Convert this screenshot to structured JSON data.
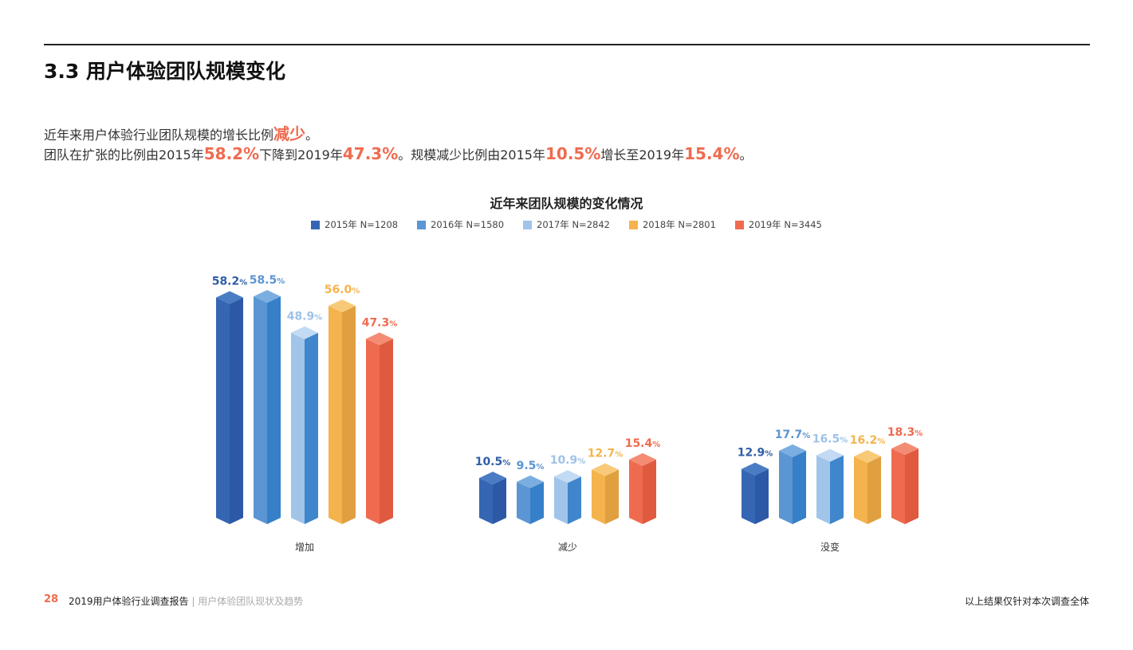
{
  "header": {
    "title": "3.3 用户体验团队规模变化"
  },
  "intro": {
    "line1_a": "近年来用户体验行业团队规模的增长比例",
    "line1_hl": "减少",
    "line1_b": "。",
    "line2_a": "团队在扩张的比例由2015年",
    "v1": "58.2%",
    "line2_b": "下降到2019年",
    "v2": "47.3%",
    "line2_c": "。规模减少比例由2015年",
    "v3": "10.5%",
    "line2_d": "增长至2019年",
    "v4": "15.4%",
    "line2_e": "。"
  },
  "chart_data": {
    "type": "bar",
    "title": "近年来团队规模的变化情况",
    "categories": [
      "增加",
      "减少",
      "没变"
    ],
    "series": [
      {
        "name": "2015年 N=1208",
        "color": "#3566b3",
        "values": [
          58.2,
          10.5,
          12.9
        ]
      },
      {
        "name": "2016年 N=1580",
        "color": "#5b95d3",
        "values": [
          58.5,
          9.5,
          17.7
        ]
      },
      {
        "name": "2017年 N=2842",
        "color": "#a1c4e9",
        "values": [
          48.9,
          10.9,
          16.5
        ]
      },
      {
        "name": "2018年 N=2801",
        "color": "#f5b34e",
        "values": [
          56.0,
          12.7,
          16.2
        ]
      },
      {
        "name": "2019年 N=3445",
        "color": "#ef6b4f",
        "values": [
          47.3,
          15.4,
          18.3
        ]
      }
    ],
    "unit": "%",
    "legend": "top",
    "grid": false
  },
  "footer": {
    "page": "28",
    "report": "2019用户体验行业调查报告",
    "sep": "|",
    "section": "用户体验团队现状及趋势",
    "note": "以上结果仅针对本次调查全体"
  }
}
